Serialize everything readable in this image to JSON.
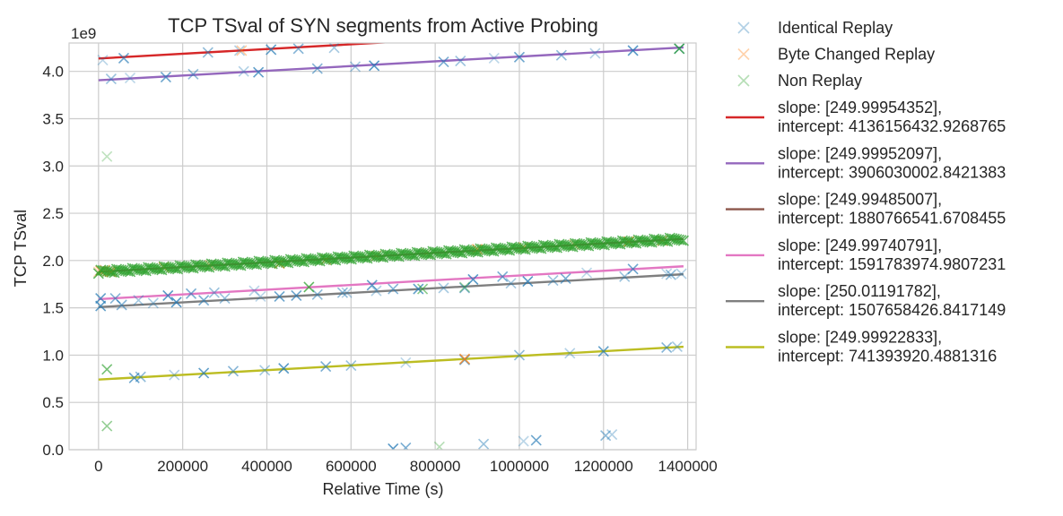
{
  "chart_data": {
    "type": "scatter",
    "title": "TCP TSval of SYN segments from Active Probing",
    "xlabel": "Relative Time (s)",
    "ylabel": "TCP TSval",
    "y_offset_label": "1e9",
    "xlim": [
      -70000,
      1420000
    ],
    "ylim": [
      0,
      4.3
    ],
    "x_ticks": [
      0,
      200000,
      400000,
      600000,
      800000,
      1000000,
      1200000,
      1400000
    ],
    "x_tick_labels": [
      "0",
      "200000",
      "400000",
      "600000",
      "800000",
      "1000000",
      "1200000",
      "1400000"
    ],
    "y_ticks": [
      0,
      0.5,
      1.0,
      1.5,
      2.0,
      2.5,
      3.0,
      3.5,
      4.0
    ],
    "y_tick_labels": [
      "0.0",
      "0.5",
      "1.0",
      "1.5",
      "2.0",
      "2.5",
      "3.0",
      "3.5",
      "4.0"
    ],
    "grid": true,
    "legend_position": "outside-right",
    "scatter_series": [
      {
        "name": "Identical Replay",
        "color": "#1f77b4",
        "marker": "x",
        "points": [
          [
            10000,
            4.12
          ],
          [
            60000,
            4.14
          ],
          [
            260000,
            4.2
          ],
          [
            335000,
            4.22
          ],
          [
            410000,
            4.23
          ],
          [
            475000,
            4.24
          ],
          [
            560000,
            4.25
          ],
          [
            1270000,
            4.22
          ],
          [
            1380000,
            4.24
          ],
          [
            30000,
            3.92
          ],
          [
            75000,
            3.93
          ],
          [
            160000,
            3.94
          ],
          [
            225000,
            3.97
          ],
          [
            345000,
            4.0
          ],
          [
            380000,
            3.99
          ],
          [
            520000,
            4.03
          ],
          [
            610000,
            4.05
          ],
          [
            655000,
            4.06
          ],
          [
            820000,
            4.1
          ],
          [
            860000,
            4.11
          ],
          [
            940000,
            4.14
          ],
          [
            1000000,
            4.15
          ],
          [
            1100000,
            4.17
          ],
          [
            1180000,
            4.19
          ],
          [
            5000,
            1.6
          ],
          [
            40000,
            1.6
          ],
          [
            95000,
            1.58
          ],
          [
            165000,
            1.63
          ],
          [
            220000,
            1.65
          ],
          [
            275000,
            1.66
          ],
          [
            370000,
            1.68
          ],
          [
            430000,
            1.62
          ],
          [
            520000,
            1.64
          ],
          [
            590000,
            1.66
          ],
          [
            650000,
            1.74
          ],
          [
            700000,
            1.7
          ],
          [
            820000,
            1.71
          ],
          [
            890000,
            1.8
          ],
          [
            960000,
            1.83
          ],
          [
            1080000,
            1.79
          ],
          [
            1160000,
            1.87
          ],
          [
            1270000,
            1.91
          ],
          [
            1360000,
            1.85
          ],
          [
            1385000,
            1.86
          ],
          [
            5000,
            1.52
          ],
          [
            55000,
            1.53
          ],
          [
            130000,
            1.55
          ],
          [
            185000,
            1.56
          ],
          [
            250000,
            1.58
          ],
          [
            300000,
            1.6
          ],
          [
            385000,
            1.62
          ],
          [
            470000,
            1.63
          ],
          [
            580000,
            1.66
          ],
          [
            660000,
            1.68
          ],
          [
            760000,
            1.7
          ],
          [
            870000,
            1.71
          ],
          [
            980000,
            1.76
          ],
          [
            1020000,
            1.78
          ],
          [
            1110000,
            1.81
          ],
          [
            1250000,
            1.83
          ],
          [
            1350000,
            1.86
          ],
          [
            85000,
            0.76
          ],
          [
            100000,
            0.77
          ],
          [
            180000,
            0.79
          ],
          [
            250000,
            0.81
          ],
          [
            320000,
            0.83
          ],
          [
            395000,
            0.84
          ],
          [
            440000,
            0.86
          ],
          [
            540000,
            0.88
          ],
          [
            600000,
            0.89
          ],
          [
            730000,
            0.92
          ],
          [
            870000,
            0.95
          ],
          [
            1000000,
            1.0
          ],
          [
            1120000,
            1.02
          ],
          [
            1200000,
            1.04
          ],
          [
            1350000,
            1.08
          ],
          [
            1375000,
            1.09
          ],
          [
            700000,
            0.01
          ],
          [
            730000,
            0.02
          ],
          [
            915000,
            0.06
          ],
          [
            1010000,
            0.09
          ],
          [
            1040000,
            0.1
          ],
          [
            1205000,
            0.15
          ],
          [
            1220000,
            0.16
          ]
        ]
      },
      {
        "name": "Byte Changed Replay",
        "color": "#ff7f0e",
        "marker": "x",
        "points": [
          [
            0,
            1.88
          ],
          [
            5000,
            1.89
          ],
          [
            15000,
            1.9
          ],
          [
            25000,
            1.89
          ],
          [
            30000,
            1.88
          ],
          [
            155000,
            1.93
          ],
          [
            265000,
            1.95
          ],
          [
            430000,
            1.97
          ],
          [
            540000,
            2.01
          ],
          [
            660000,
            2.05
          ],
          [
            780000,
            2.08
          ],
          [
            900000,
            2.12
          ],
          [
            1010000,
            2.14
          ],
          [
            1130000,
            2.17
          ],
          [
            1260000,
            2.2
          ],
          [
            1340000,
            2.21
          ],
          [
            340000,
            4.22
          ],
          [
            870000,
            0.96
          ]
        ]
      },
      {
        "name": "Non Replay",
        "color": "#2ca02c",
        "marker": "x",
        "points": [
          [
            20000,
            3.1
          ],
          [
            20000,
            0.85
          ],
          [
            20000,
            0.25
          ],
          [
            810000,
            0.03
          ],
          [
            1380000,
            4.24
          ],
          [
            770000,
            1.7
          ],
          [
            870000,
            1.72
          ],
          [
            500000,
            1.72
          ]
        ],
        "dense_band": {
          "x_range": [
            0,
            1390000
          ],
          "slope": 249.9948,
          "intercept": 1880766541.67,
          "count": 260
        }
      }
    ],
    "fit_lines": [
      {
        "label": "slope: [249.99954352],\nintercept: 4136156432.9268765",
        "slope": 249.99954352,
        "intercept": 4136156432.9268765,
        "color": "#d62728"
      },
      {
        "label": "slope: [249.99952097],\nintercept: 3906030002.8421383",
        "slope": 249.99952097,
        "intercept": 3906030002.8421383,
        "color": "#9467bd"
      },
      {
        "label": "slope: [249.99485007],\nintercept: 1880766541.6708455",
        "slope": 249.99485007,
        "intercept": 1880766541.6708455,
        "color": "#8c564b"
      },
      {
        "label": "slope: [249.99740791],\nintercept: 1591783974.9807231",
        "slope": 249.99740791,
        "intercept": 1591783974.9807231,
        "color": "#e377c2"
      },
      {
        "label": "slope: [250.01191782],\nintercept: 1507658426.8417149",
        "slope": 250.01191782,
        "intercept": 1507658426.8417149,
        "color": "#7f7f7f"
      },
      {
        "label": "slope: [249.99922833],\nintercept: 741393920.4881316",
        "slope": 249.99922833,
        "intercept": 741393920.4881316,
        "color": "#bcbd22"
      }
    ],
    "fit_x_range": [
      0,
      1390000
    ]
  }
}
